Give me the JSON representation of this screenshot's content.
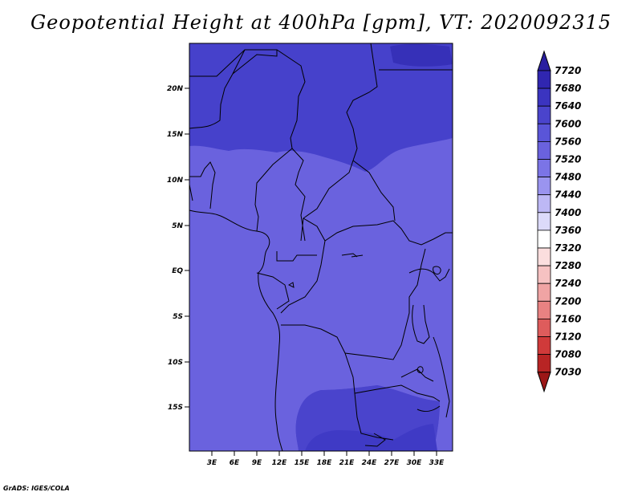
{
  "title": "Geopotential Height at 400hPa [gpm], VT: 2020092315",
  "footer": "GrADS: IGES/COLA",
  "map": {
    "lat_labels": [
      "20N",
      "15N",
      "10N",
      "5N",
      "EQ",
      "5S",
      "10S",
      "15S"
    ],
    "lon_labels": [
      "3E",
      "6E",
      "9E",
      "12E",
      "15E",
      "18E",
      "21E",
      "24E",
      "27E",
      "30E",
      "33E"
    ],
    "region": "West/Central Africa, approx. 0E–35E, 20S–24N"
  },
  "colorbar": {
    "levels": [
      "7720",
      "7680",
      "7640",
      "7600",
      "7560",
      "7520",
      "7480",
      "7440",
      "7400",
      "7360",
      "7320",
      "7280",
      "7240",
      "7200",
      "7160",
      "7120",
      "7080",
      "7030"
    ],
    "colors": [
      "#2a1fa0",
      "#3026b0",
      "#3b34c0",
      "#4a44cc",
      "#5a55d8",
      "#6a62de",
      "#7b74e6",
      "#9a94ef",
      "#bdb8f5",
      "#dcdafa",
      "#ffffff",
      "#fbdede",
      "#f6c2c2",
      "#f0a4a4",
      "#e88282",
      "#de5c5c",
      "#d03a3a",
      "#b82424",
      "#9c1717"
    ]
  },
  "field_colors": {
    "band_7640_7680": "#3d3ac6",
    "band_7600_7640": "#4a44cc",
    "band_7560_7600": "#6a62de",
    "band_7680_7720": "#3026b0"
  }
}
